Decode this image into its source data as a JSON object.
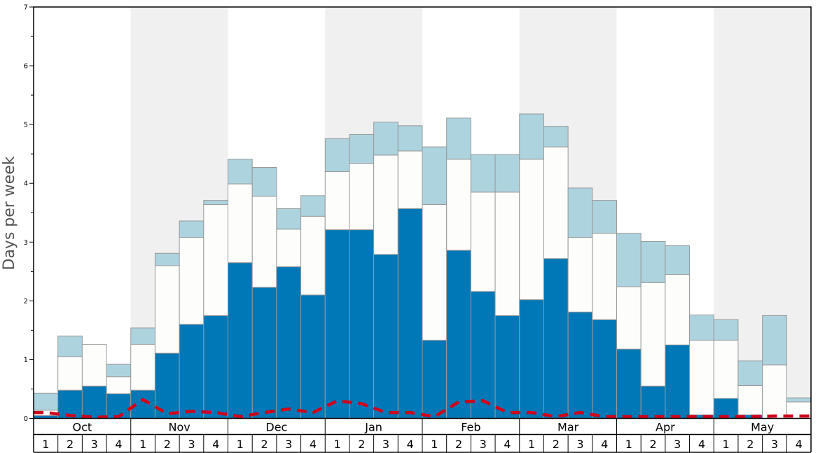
{
  "chart_data": {
    "type": "bar",
    "stacked": true,
    "ylabel": "Days per week",
    "ylim": [
      0,
      7
    ],
    "yticks": [
      "0",
      "1",
      "2",
      "3",
      "4",
      "5",
      "6",
      "7"
    ],
    "months": [
      "Oct",
      "Nov",
      "Dec",
      "Jan",
      "Feb",
      "Mar",
      "Apr",
      "May"
    ],
    "weeks": [
      "1",
      "2",
      "3",
      "4"
    ],
    "categories": [
      "Oct 1",
      "Oct 2",
      "Oct 3",
      "Oct 4",
      "Nov 1",
      "Nov 2",
      "Nov 3",
      "Nov 4",
      "Dec 1",
      "Dec 2",
      "Dec 3",
      "Dec 4",
      "Jan 1",
      "Jan 2",
      "Jan 3",
      "Jan 4",
      "Feb 1",
      "Feb 2",
      "Feb 3",
      "Feb 4",
      "Mar 1",
      "Mar 2",
      "Mar 3",
      "Mar 4",
      "Apr 1",
      "Apr 2",
      "Apr 3",
      "Apr 4",
      "May 1",
      "May 2",
      "May 3",
      "May 4"
    ],
    "series": [
      {
        "color": "#0077b6",
        "values": [
          0.05,
          0.48,
          0.55,
          0.42,
          0.48,
          1.11,
          1.6,
          1.75,
          2.65,
          2.23,
          2.58,
          2.1,
          3.21,
          3.21,
          2.79,
          3.57,
          1.33,
          2.86,
          2.16,
          1.75,
          2.02,
          2.72,
          1.81,
          1.68,
          1.18,
          0.55,
          1.25,
          0.06,
          0.34,
          0.06,
          0.0,
          0.0
        ]
      },
      {
        "color": "#fdfdfb",
        "values": [
          0.09,
          0.57,
          0.71,
          0.29,
          0.78,
          1.49,
          1.48,
          1.89,
          1.34,
          1.55,
          0.64,
          1.34,
          0.99,
          1.13,
          1.69,
          0.98,
          2.31,
          1.55,
          1.69,
          2.1,
          2.39,
          1.9,
          1.27,
          1.47,
          1.06,
          1.76,
          1.2,
          1.27,
          0.99,
          0.5,
          0.91,
          0.28
        ]
      },
      {
        "color": "#add3df",
        "values": [
          0.29,
          0.35,
          0.0,
          0.21,
          0.28,
          0.21,
          0.28,
          0.07,
          0.42,
          0.49,
          0.35,
          0.35,
          0.56,
          0.49,
          0.56,
          0.43,
          0.98,
          0.7,
          0.64,
          0.64,
          0.77,
          0.35,
          0.84,
          0.56,
          0.91,
          0.7,
          0.49,
          0.43,
          0.35,
          0.42,
          0.84,
          0.07
        ]
      }
    ],
    "line": {
      "color": "#d0021b",
      "style": "dashed",
      "values": [
        0.1,
        0.05,
        0.02,
        0.03,
        0.32,
        0.08,
        0.12,
        0.1,
        0.03,
        0.1,
        0.16,
        0.1,
        0.3,
        0.25,
        0.1,
        0.1,
        0.03,
        0.28,
        0.3,
        0.1,
        0.1,
        0.03,
        0.1,
        0.03,
        0.03,
        0.03,
        0.03,
        0.03,
        0.03,
        0.03,
        0.04,
        0.04
      ]
    },
    "background_bands": {
      "shaded_color": "#f0f0f0",
      "shaded_months": [
        "Nov",
        "Jan",
        "Mar",
        "May"
      ]
    },
    "grid": false
  }
}
